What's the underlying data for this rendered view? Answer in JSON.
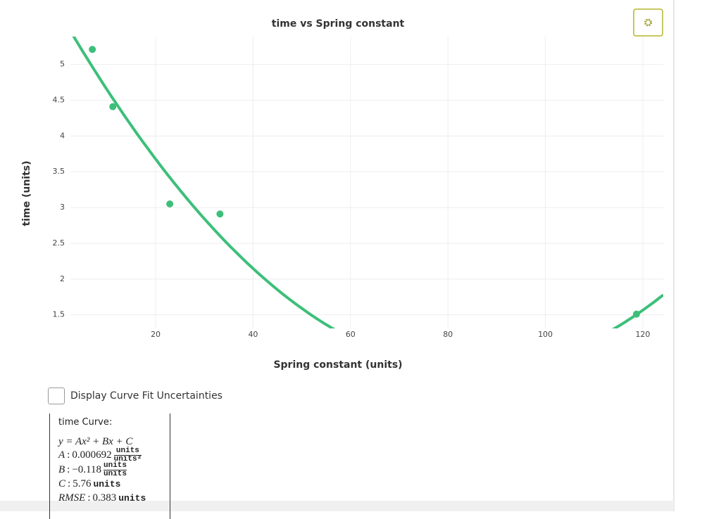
{
  "chart_data": {
    "type": "scatter",
    "title": "time vs Spring constant",
    "x_label": "Spring constant (units)",
    "y_label": "time (units)",
    "series": [
      {
        "color": "#3dbf7a",
        "x": [
          7.0,
          11.2,
          22.9,
          33.2,
          118.7
        ],
        "y": [
          5.21,
          4.41,
          3.05,
          2.91,
          1.51
        ]
      }
    ],
    "xlim": [
      2.5,
      124.2
    ],
    "ylim": [
      1.31,
      5.39
    ],
    "xticks": [
      20,
      40,
      60,
      80,
      100,
      120
    ],
    "yticks": [
      1.5,
      2,
      2.5,
      3,
      3.5,
      4,
      4.5,
      5
    ],
    "grid": true,
    "fit": {
      "title": "time Curve:",
      "equation": "y = Ax² + Bx + C",
      "separator": ":",
      "coefficients": [
        {
          "name": "A",
          "value": 0.000692,
          "units": "units",
          "per": "units²"
        },
        {
          "name": "B",
          "value": -0.118,
          "label": "−0.118",
          "units": "units",
          "per": "units"
        },
        {
          "name": "C",
          "value": 5.76,
          "units": "units"
        }
      ],
      "rmse": {
        "name": "RMSE",
        "value": 0.383,
        "units": "units"
      }
    }
  },
  "controls": {
    "checkbox_label": "Display Curve Fit Uncertainties"
  }
}
